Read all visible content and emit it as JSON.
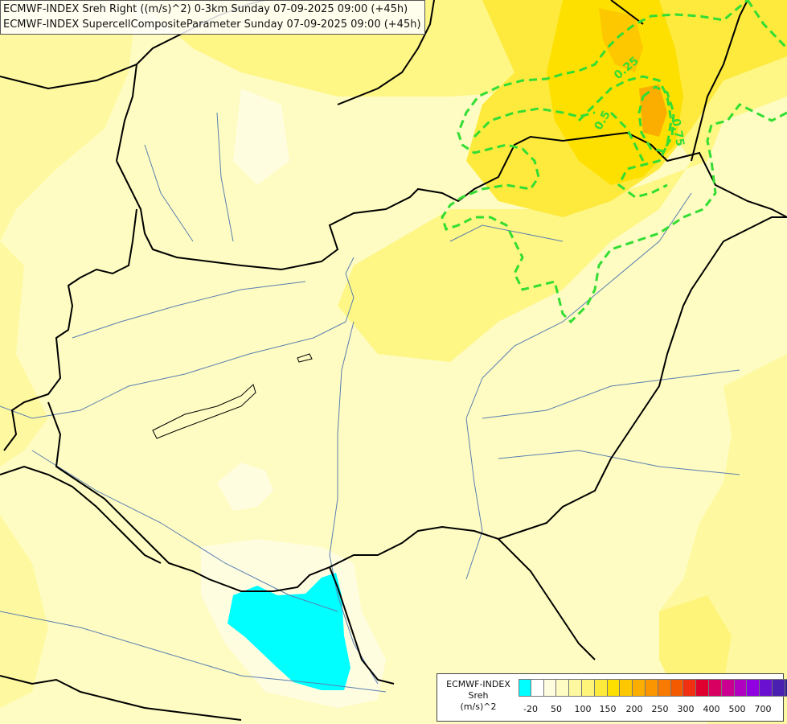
{
  "header": {
    "line1": "ECMWF-INDEX Sreh Right ((m/s)^2) 0-3km Sunday 07-09-2025 09:00 (+45h)",
    "line2": "ECMWF-INDEX SupercellCompositeParameter Sunday 07-09-2025 09:00 (+45h)"
  },
  "contour_labels": [
    "0.25",
    "0.5",
    "0.75"
  ],
  "legend": {
    "title_line1": "ECMWF-INDEX",
    "title_line2": "Sreh",
    "title_line3": "(m/s)^2",
    "ticks": [
      "-20",
      "50",
      "100",
      "150",
      "200",
      "250",
      "300",
      "400",
      "500",
      "700"
    ],
    "colors": [
      "#00ffff",
      "#ffffff",
      "#fefde0",
      "#fefcc2",
      "#fef9a0",
      "#fef47a",
      "#fdea3c",
      "#fde000",
      "#fdc800",
      "#fcae00",
      "#fb9600",
      "#f97a00",
      "#f45a00",
      "#f03010",
      "#e00030",
      "#d80060",
      "#cc0090",
      "#b000c0",
      "#9000e0",
      "#6a10d0",
      "#4a20b0",
      "#2a2090",
      "#101070"
    ]
  },
  "colors": {
    "contour": "#33dd33",
    "border": "#000000",
    "river": "#5a7fb0"
  }
}
